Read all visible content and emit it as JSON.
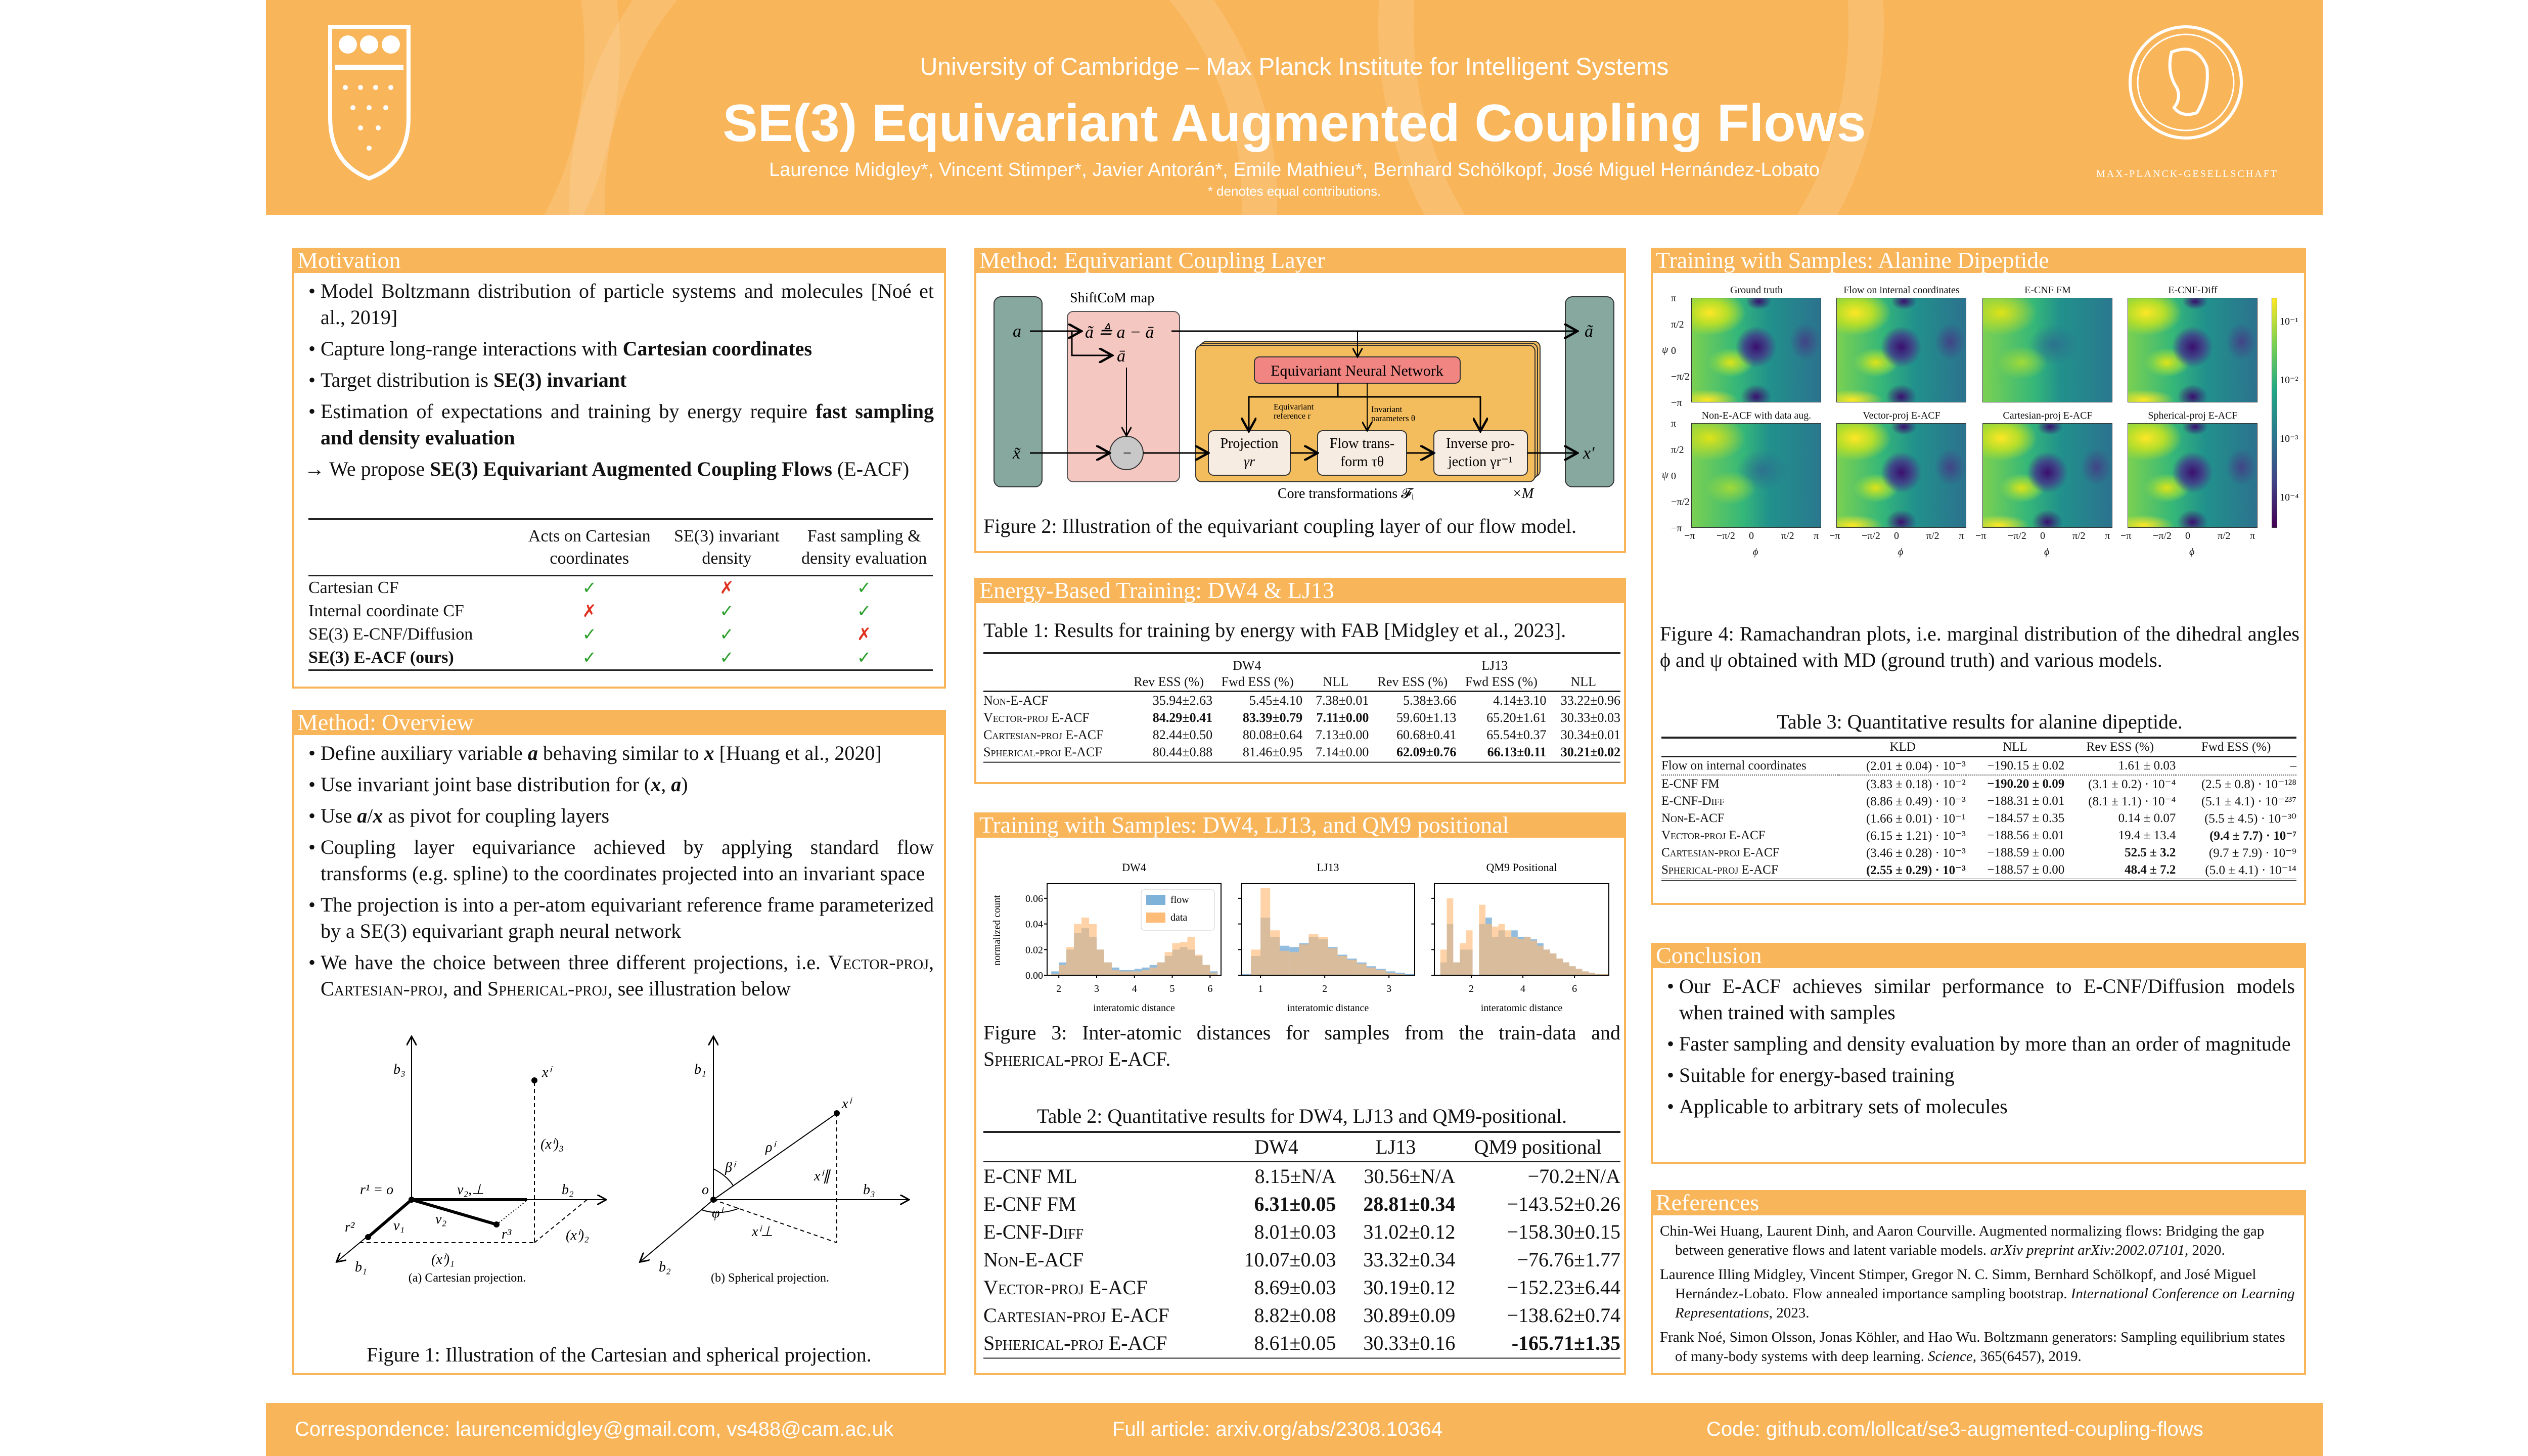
{
  "header": {
    "affiliation": "University of Cambridge – Max Planck Institute for Intelligent Systems",
    "title": "SE(3) Equivariant Augmented Coupling Flows",
    "authors": "Laurence Midgley*, Vincent Stimper*, Javier Antorán*, Emile Mathieu*, Bernhard Schölkopf, José Miguel Hernández-Lobato",
    "note": "* denotes equal contributions.",
    "mpg_logo_text": "MAX-PLANCK-GESELLSCHAFT",
    "accent": "#F9B55A"
  },
  "motivation": {
    "title": "Motivation",
    "bullets": [
      [
        [
          "Model Boltzmann distribution of particle systems and molecules [Noé et al., 2019]",
          ""
        ]
      ],
      [
        [
          "Capture long-range interactions with ",
          ""
        ],
        [
          "Cartesian coordinates",
          "b"
        ]
      ],
      [
        [
          "Target distribution is ",
          ""
        ],
        [
          "SE(3) invariant",
          "b"
        ]
      ],
      [
        [
          "Estimation of expectations and training by energy require ",
          ""
        ],
        [
          "fast sampling and density evaluation",
          "b"
        ]
      ],
      [
        [
          "→ We propose ",
          ""
        ],
        [
          "SE(3) Equivariant Augmented Coupling Flows",
          "b"
        ],
        [
          " (E-ACF)",
          ""
        ]
      ]
    ],
    "table": {
      "columns": [
        "",
        "Acts on Cartesian coordinates",
        "SE(3) invariant density",
        "Fast sampling & density evaluation"
      ],
      "rows": [
        {
          "label": "Cartesian CF",
          "cells": [
            "✓",
            "✗",
            "✓"
          ]
        },
        {
          "label": "Internal coordinate CF",
          "cells": [
            "✗",
            "✓",
            "✓"
          ]
        },
        {
          "label": "SE(3) E-CNF/Diffusion",
          "cells": [
            "✓",
            "✓",
            "✗"
          ]
        },
        {
          "label": "SE(3) E-ACF (ours)",
          "bold": true,
          "cells": [
            "✓",
            "✓",
            "✓"
          ]
        }
      ]
    }
  },
  "overview": {
    "title": "Method: Overview",
    "bullets": [
      [
        [
          "Define auxiliary variable ",
          ""
        ],
        [
          "a",
          "m"
        ],
        [
          " behaving similar to ",
          ""
        ],
        [
          "x",
          "m"
        ],
        [
          " [Huang et al., 2020]",
          ""
        ]
      ],
      [
        [
          "Use invariant joint base distribution for (",
          ""
        ],
        [
          "x",
          "m"
        ],
        [
          ", ",
          ""
        ],
        [
          "a",
          "m"
        ],
        [
          ")",
          ""
        ]
      ],
      [
        [
          "Use ",
          ""
        ],
        [
          "a",
          "m"
        ],
        [
          "/",
          ""
        ],
        [
          "x",
          "m"
        ],
        [
          " as pivot for coupling layers",
          ""
        ]
      ],
      [
        [
          "Coupling layer equivariance achieved by applying standard flow transforms (e.g. spline) to the coordinates projected into an invariant space",
          ""
        ]
      ],
      [
        [
          "The projection is into a per-atom equivariant reference frame parameterized by a SE(3) equivariant graph neural network",
          ""
        ]
      ],
      [
        [
          "We have the choice between three different projections, i.e. ",
          ""
        ],
        [
          "Vector-proj",
          "sc"
        ],
        [
          ", ",
          ""
        ],
        [
          "Cartesian-proj",
          "sc"
        ],
        [
          ", and ",
          ""
        ],
        [
          "Spherical-proj",
          "sc"
        ],
        [
          ", see illustration below",
          ""
        ]
      ]
    ],
    "fig1": {
      "cart": {
        "b3": "b₃",
        "b2": "b₂",
        "b1": "b₁",
        "xi": "xⁱ",
        "x3": "(xⁱ)₃",
        "x2": "(xⁱ)₂",
        "x1": "(xⁱ)₁",
        "v2perp": "v₂,⊥",
        "v2": "v₂",
        "v1": "v₁",
        "r1": "r¹ = o",
        "r2": "r²",
        "r3": "r³",
        "caption": "(a) Cartesian projection."
      },
      "sph": {
        "b1": "b₁",
        "b3": "b₃",
        "b2": "b₂",
        "o": "o",
        "xi": "xⁱ",
        "rho": "ρⁱ",
        "beta": "βⁱ",
        "xpar": "xⁱ∥",
        "xperp": "xⁱ⊥",
        "phi": "φⁱ",
        "caption": "(b) Spherical projection."
      },
      "caption": "Figure 1: Illustration of the Cartesian and spherical projection."
    }
  },
  "coupling": {
    "title": "Method: Equivariant Coupling Layer",
    "diagram": {
      "shiftcom": "ShiftCoM map",
      "a": "a",
      "a_tilde_def": "ã ≜ a − ā",
      "a_bar": "ā",
      "x_tilde": "x̃",
      "minus": "−",
      "enn": "Equivariant Neural Network",
      "eq_ref_1": "Equivariant",
      "eq_ref_2": "reference r",
      "inv_1": "Invariant",
      "inv_2": "parameters θ",
      "proj_1": "Projection",
      "proj_2": "γr",
      "flow_1": "Flow trans-",
      "flow_2": "form τθ",
      "inv_proj_1": "Inverse pro-",
      "inv_proj_2": "jection γr⁻¹",
      "a_out": "ã",
      "x_out": "x′",
      "core": "Core transformations 𝓕ᵢ",
      "times_m": "×M"
    },
    "caption": "Figure 2: Illustration of the equivariant coupling layer of our flow model."
  },
  "energy": {
    "title": "Energy-Based Training: DW4 & LJ13",
    "caption": "Table 1: Results for training by energy with FAB [Midgley et al., 2023].",
    "table": {
      "groups": [
        [
          "",
          1
        ],
        [
          "DW4",
          3
        ],
        [
          "LJ13",
          3
        ]
      ],
      "columns": [
        "",
        "Rev ESS (%)",
        "Fwd ESS (%)",
        "NLL",
        "Rev ESS (%)",
        "Fwd ESS (%)",
        "NLL"
      ],
      "rows": [
        {
          "label": "Non-E-ACF",
          "sc": true,
          "cells": [
            "35.94±2.63",
            "5.45±4.10",
            "7.38±0.01",
            "5.38±3.66",
            "4.14±3.10",
            "33.22±0.96"
          ],
          "best": []
        },
        {
          "label": "Vector-proj E-ACF",
          "sc": true,
          "cells": [
            "84.29±0.41",
            "83.39±0.79",
            "7.11±0.00",
            "59.60±1.13",
            "65.20±1.61",
            "30.33±0.03"
          ],
          "best": [
            0,
            1,
            2
          ]
        },
        {
          "label": "Cartesian-proj E-ACF",
          "sc": true,
          "cells": [
            "82.44±0.50",
            "80.08±0.64",
            "7.13±0.00",
            "60.68±0.41",
            "65.54±0.37",
            "30.34±0.01"
          ],
          "best": []
        },
        {
          "label": "Spherical-proj E-ACF",
          "sc": true,
          "cells": [
            "80.44±0.88",
            "81.46±0.95",
            "7.14±0.00",
            "62.09±0.76",
            "66.13±0.11",
            "30.21±0.02"
          ],
          "best": [
            3,
            4,
            5
          ]
        }
      ]
    }
  },
  "samples": {
    "title": "Training with Samples: DW4, LJ13, and QM9 positional",
    "fig3_caption_parts": [
      [
        "Figure 3: Inter-atomic distances for samples from the train-data and ",
        ""
      ],
      [
        "Spherical-proj",
        "sc"
      ],
      [
        " E-ACF.",
        ""
      ]
    ],
    "table_caption": "Table 2: Quantitative results for DW4, LJ13 and QM9-positional.",
    "table": {
      "columns": [
        "",
        "DW4",
        "LJ13",
        "QM9 positional"
      ],
      "rows": [
        {
          "label": "E-CNF ML",
          "sc": false,
          "cells": [
            "8.15±N/A",
            "30.56±N/A",
            "−70.2±N/A"
          ],
          "best": []
        },
        {
          "label": "E-CNF FM",
          "sc": false,
          "cells": [
            "6.31±0.05",
            "28.81±0.34",
            "−143.52±0.26"
          ],
          "best": [
            0,
            1
          ]
        },
        {
          "label": "E-CNF-Diff",
          "sc": true,
          "cells": [
            "8.01±0.03",
            "31.02±0.12",
            "−158.30±0.15"
          ],
          "best": []
        },
        {
          "label": "Non-E-ACF",
          "sc": true,
          "cells": [
            "10.07±0.03",
            "33.32±0.34",
            "−76.76±1.77"
          ],
          "best": []
        },
        {
          "label": "Vector-proj E-ACF",
          "sc": true,
          "cells": [
            "8.69±0.03",
            "30.19±0.12",
            "−152.23±6.44"
          ],
          "best": []
        },
        {
          "label": "Cartesian-proj E-ACF",
          "sc": true,
          "cells": [
            "8.82±0.08",
            "30.89±0.09",
            "−138.62±0.74"
          ],
          "best": []
        },
        {
          "label": "Spherical-proj E-ACF",
          "sc": true,
          "cells": [
            "8.61±0.05",
            "30.33±0.16",
            "-165.71±1.35"
          ],
          "best": [
            2
          ]
        }
      ]
    }
  },
  "alanine": {
    "title": "Training with Samples: Alanine Dipeptide",
    "panels": [
      "Ground truth",
      "Flow on internal coordinates",
      "E-CNF FM",
      "E-CNF-Diff",
      "Non-E-ACF with data aug.",
      "Vector-proj E-ACF",
      "Cartesian-proj E-ACF",
      "Spherical-proj E-ACF"
    ],
    "yticks": [
      "π",
      "π/2",
      "0",
      "−π/2",
      "−π"
    ],
    "xticks": [
      "−π",
      "−π/2",
      "0",
      "π/2",
      "π"
    ],
    "ylabel": "ψ",
    "xlabel": "ϕ",
    "colorbar_ticks": [
      "10⁻¹",
      "10⁻²",
      "10⁻³",
      "10⁻⁴"
    ],
    "caption": "Figure 4: Ramachandran plots, i.e. marginal distribution of the dihedral angles ϕ and ψ obtained with MD (ground truth) and various models.",
    "table_caption": "Table 3: Quantitative results for alanine dipeptide.",
    "table": {
      "columns": [
        "",
        "KLD",
        "NLL",
        "Rev ESS (%)",
        "Fwd ESS (%)"
      ],
      "rows": [
        {
          "label": "Flow on internal coordinates",
          "sc": false,
          "cells": [
            "(2.01 ± 0.04) · 10⁻³",
            "−190.15 ± 0.02",
            "1.61 ± 0.03",
            "–"
          ],
          "best": []
        },
        {
          "label": "E-CNF FM",
          "sc": false,
          "cells": [
            "(3.83 ± 0.18) · 10⁻²",
            "−190.20 ± 0.09",
            "(3.1 ± 0.2) · 10⁻⁴",
            "(2.5 ± 0.8) · 10⁻¹²⁸"
          ],
          "best": [
            1
          ]
        },
        {
          "label": "E-CNF-Diff",
          "sc": true,
          "cells": [
            "(8.86 ± 0.49) · 10⁻³",
            "−188.31 ± 0.01",
            "(8.1 ± 1.1) · 10⁻⁴",
            "(5.1 ± 4.1) · 10⁻²³⁷"
          ],
          "best": []
        },
        {
          "label": "Non-E-ACF",
          "sc": true,
          "cells": [
            "(1.66 ± 0.01) · 10⁻¹",
            "−184.57 ± 0.35",
            "0.14 ± 0.07",
            "(5.5 ± 4.5) · 10⁻³⁰"
          ],
          "best": []
        },
        {
          "label": "Vector-proj E-ACF",
          "sc": true,
          "cells": [
            "(6.15 ± 1.21) · 10⁻³",
            "−188.56 ± 0.01",
            "19.4 ± 13.4",
            "(9.4 ± 7.7) · 10⁻⁷"
          ],
          "best": [
            3
          ]
        },
        {
          "label": "Cartesian-proj E-ACF",
          "sc": true,
          "cells": [
            "(3.46 ± 0.28) · 10⁻³",
            "−188.59 ± 0.00",
            "52.5 ± 3.2",
            "(9.7 ± 7.9) · 10⁻⁹"
          ],
          "best": [
            2
          ]
        },
        {
          "label": "Spherical-proj E-ACF",
          "sc": true,
          "cells": [
            "(2.55 ± 0.29) · 10⁻³",
            "−188.57 ± 0.00",
            "48.4 ± 7.2",
            "(5.0 ± 4.1) · 10⁻¹⁴"
          ],
          "best": [
            0,
            2
          ]
        }
      ]
    }
  },
  "conclusion": {
    "title": "Conclusion",
    "bullets": [
      [
        [
          "Our E-ACF achieves similar performance to E-CNF/Diffusion models when trained with samples",
          ""
        ]
      ],
      [
        [
          "Faster sampling and density evaluation by more than an order of magnitude",
          ""
        ]
      ],
      [
        [
          "Suitable for energy-based training",
          ""
        ]
      ],
      [
        [
          "Applicable to arbitrary sets of molecules",
          ""
        ]
      ]
    ]
  },
  "references": {
    "title": "References",
    "items": [
      [
        [
          "Chin-Wei Huang, Laurent Dinh, and Aaron Courville. Augmented normalizing flows: Bridging the gap between generative flows and latent variable models. ",
          ""
        ],
        [
          "arXiv preprint arXiv:2002.07101",
          "i"
        ],
        [
          ", 2020.",
          ""
        ]
      ],
      [
        [
          "Laurence Illing Midgley, Vincent Stimper, Gregor N. C. Simm, Bernhard Schölkopf, and José Miguel Hernández-Lobato. Flow annealed importance sampling bootstrap. ",
          ""
        ],
        [
          "International Conference on Learning Representations",
          "i"
        ],
        [
          ", 2023.",
          ""
        ]
      ],
      [
        [
          "Frank Noé, Simon Olsson, Jonas Köhler, and Hao Wu. Boltzmann generators: Sampling equilibrium states of many-body systems with deep learning. ",
          ""
        ],
        [
          "Science",
          "i"
        ],
        [
          ", 365(6457), 2019.",
          ""
        ]
      ]
    ]
  },
  "footer": {
    "correspondence": "Correspondence: laurencemidgley@gmail.com, vs488@cam.ac.uk",
    "article": "Full article: arxiv.org/abs/2308.10364",
    "code": "Code: github.com/lollcat/se3-augmented-coupling-flows"
  },
  "chart_data": {
    "type": "bar",
    "title": "Inter-atomic distances (histograms)",
    "ylabel": "normalized count",
    "legend": [
      "flow",
      "data"
    ],
    "legend_placement": "top-right (first panel)",
    "colors": {
      "flow": "#7fb2d9",
      "data": "#ffbb78"
    },
    "yticks": [
      "0.00",
      "0.02",
      "0.04",
      "0.06"
    ],
    "ylim": [
      0,
      0.0714
    ],
    "subplots": [
      {
        "title": "DW4",
        "xlabel": "interatomic distance",
        "xlim": [
          1.69,
          6.29
        ],
        "xticks": [
          "2",
          "3",
          "4",
          "5",
          "6"
        ],
        "bin_start": 1.8,
        "bin_width": 0.2,
        "flow": [
          0.003,
          0.01,
          0.02,
          0.033,
          0.037,
          0.03,
          0.02,
          0.01,
          0.006,
          0.004,
          0.004,
          0.005,
          0.006,
          0.008,
          0.01,
          0.015,
          0.02,
          0.022,
          0.02,
          0.015,
          0.008,
          0.003
        ],
        "data": [
          0.001,
          0.008,
          0.022,
          0.04,
          0.045,
          0.04,
          0.02,
          0.01,
          0.004,
          0.003,
          0.003,
          0.003,
          0.004,
          0.006,
          0.01,
          0.018,
          0.025,
          0.026,
          0.03,
          0.016,
          0.008,
          0.002
        ]
      },
      {
        "title": "LJ13",
        "xlabel": "interatomic distance",
        "xlim": [
          0.7,
          3.4
        ],
        "xticks": [
          "1",
          "2",
          "3"
        ],
        "bin_start": 0.7,
        "bin_width": 0.15,
        "flow": [
          0.001,
          0.015,
          0.045,
          0.03,
          0.023,
          0.022,
          0.025,
          0.03,
          0.028,
          0.022,
          0.016,
          0.013,
          0.01,
          0.007,
          0.005,
          0.003,
          0.002,
          0.001
        ],
        "data": [
          0,
          0.02,
          0.068,
          0.035,
          0.019,
          0.018,
          0.024,
          0.032,
          0.03,
          0.021,
          0.015,
          0.012,
          0.009,
          0.006,
          0.004,
          0.002,
          0.001,
          0
        ]
      },
      {
        "title": "QM9 Positional",
        "xlabel": "interatomic distance",
        "xlim": [
          0.57,
          7.33
        ],
        "xticks": [
          "2",
          "4",
          "6"
        ],
        "bin_start": 0.8,
        "bin_width": 0.25,
        "flow": [
          0.01,
          0.04,
          0.01,
          0.02,
          0.02,
          0.0,
          0.04,
          0.045,
          0.03,
          0.035,
          0.03,
          0.035,
          0.03,
          0.03,
          0.028,
          0.025,
          0.02,
          0.017,
          0.013,
          0.01,
          0.007,
          0.005,
          0.003,
          0.002,
          0.001,
          0.001
        ],
        "data": [
          0.02,
          0.06,
          0.01,
          0.025,
          0.035,
          0.0,
          0.055,
          0.04,
          0.038,
          0.04,
          0.035,
          0.03,
          0.028,
          0.03,
          0.027,
          0.023,
          0.02,
          0.017,
          0.013,
          0.01,
          0.007,
          0.005,
          0.003,
          0.002,
          0.001,
          0.001
        ]
      }
    ]
  }
}
